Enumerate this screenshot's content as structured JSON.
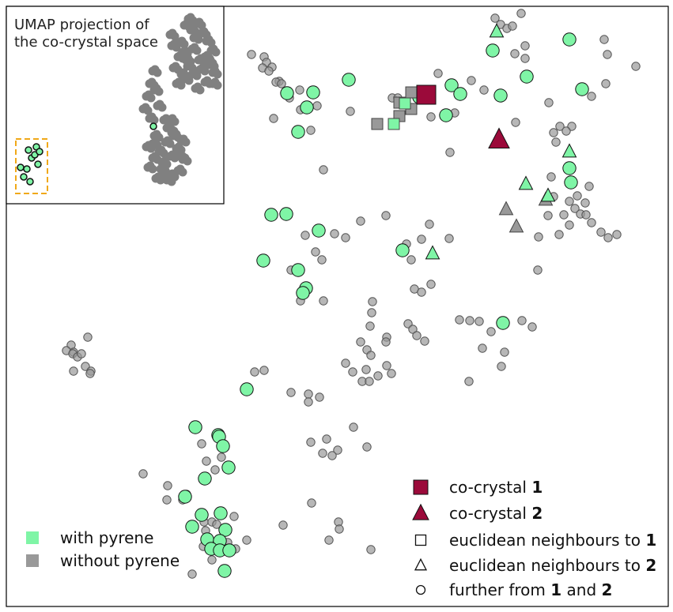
{
  "chart_data": {
    "type": "scatter",
    "title": "",
    "xlabel": "",
    "ylabel": "",
    "axes_visible": false,
    "grid": false,
    "legend_position": "bottom-right",
    "colors": {
      "with_pyrene": "#7ff5a6",
      "without_pyrene": "#999999",
      "cocrystal": "#9b0a3a",
      "edge": "#111111",
      "inset_box": "#f0a818",
      "inset_points": "#808080"
    },
    "markers": {
      "cocrystal_1": "square",
      "cocrystal_2": "triangle",
      "neighbours_1": "square",
      "neighbours_2": "triangle",
      "further": "circle"
    },
    "main": {
      "cocrystal_1": [
        [
          539,
          120
        ]
      ],
      "cocrystal_2": [
        [
          631,
          177
        ]
      ],
      "neighbours_1_with": [
        [
          512,
          131
        ],
        [
          498,
          157
        ]
      ],
      "neighbours_1_without": [
        [
          520,
          117
        ],
        [
          505,
          130
        ],
        [
          520,
          138
        ],
        [
          505,
          147
        ],
        [
          477,
          157
        ]
      ],
      "neighbours_2_with": [
        [
          628,
          40
        ],
        [
          720,
          192
        ],
        [
          665,
          233
        ],
        [
          693,
          248
        ],
        [
          547,
          321
        ]
      ],
      "neighbours_2_without": [
        [
          640,
          265
        ],
        [
          653,
          287
        ],
        [
          690,
          253
        ]
      ],
      "further_with": [
        [
          441,
          101
        ],
        [
          363,
          118
        ],
        [
          396,
          117
        ],
        [
          388,
          136
        ],
        [
          377,
          167
        ],
        [
          571,
          108
        ],
        [
          582,
          119
        ],
        [
          530,
          123
        ],
        [
          564,
          146
        ],
        [
          623,
          64
        ],
        [
          720,
          50
        ],
        [
          666,
          97
        ],
        [
          633,
          121
        ],
        [
          736,
          113
        ],
        [
          720,
          213
        ],
        [
          722,
          231
        ],
        [
          343,
          272
        ],
        [
          362,
          271
        ],
        [
          403,
          292
        ],
        [
          333,
          330
        ],
        [
          377,
          342
        ],
        [
          509,
          317
        ],
        [
          387,
          365
        ],
        [
          383,
          371
        ],
        [
          636,
          409
        ],
        [
          312,
          493
        ],
        [
          247,
          541
        ],
        [
          276,
          551
        ],
        [
          277,
          553
        ],
        [
          282,
          565
        ],
        [
          289,
          592
        ],
        [
          259,
          606
        ],
        [
          234,
          629
        ],
        [
          255,
          652
        ],
        [
          279,
          650
        ],
        [
          243,
          667
        ],
        [
          285,
          671
        ],
        [
          262,
          683
        ],
        [
          278,
          685
        ],
        [
          267,
          695
        ],
        [
          278,
          697
        ],
        [
          290,
          697
        ],
        [
          284,
          723
        ]
      ],
      "further_without": [
        [
          318,
          69
        ],
        [
          334,
          72
        ],
        [
          337,
          79
        ],
        [
          332,
          86
        ],
        [
          344,
          85
        ],
        [
          340,
          90
        ],
        [
          353,
          103
        ],
        [
          349,
          104
        ],
        [
          356,
          106
        ],
        [
          379,
          114
        ],
        [
          401,
          134
        ],
        [
          366,
          124
        ],
        [
          380,
          139
        ],
        [
          393,
          165
        ],
        [
          346,
          150
        ],
        [
          443,
          141
        ],
        [
          496,
          124
        ],
        [
          503,
          124
        ],
        [
          531,
          114
        ],
        [
          545,
          148
        ],
        [
          554,
          93
        ],
        [
          575,
          143
        ],
        [
          596,
          102
        ],
        [
          569,
          193
        ],
        [
          612,
          114
        ],
        [
          659,
          17
        ],
        [
          626,
          23
        ],
        [
          633,
          31
        ],
        [
          641,
          36
        ],
        [
          648,
          33
        ],
        [
          651,
          68
        ],
        [
          664,
          58
        ],
        [
          664,
          74
        ],
        [
          652,
          155
        ],
        [
          694,
          130
        ],
        [
          708,
          160
        ],
        [
          723,
          160
        ],
        [
          700,
          168
        ],
        [
          703,
          180
        ],
        [
          716,
          166
        ],
        [
          764,
          50
        ],
        [
          768,
          69
        ],
        [
          804,
          84
        ],
        [
          766,
          106
        ],
        [
          748,
          122
        ],
        [
          409,
          215
        ],
        [
          697,
          224
        ],
        [
          745,
          236
        ],
        [
          700,
          249
        ],
        [
          730,
          248
        ],
        [
          720,
          255
        ],
        [
          740,
          257
        ],
        [
          727,
          264
        ],
        [
          713,
          272
        ],
        [
          734,
          271
        ],
        [
          741,
          272
        ],
        [
          693,
          273
        ],
        [
          748,
          282
        ],
        [
          720,
          285
        ],
        [
          707,
          297
        ],
        [
          681,
          300
        ],
        [
          760,
          294
        ],
        [
          769,
          301
        ],
        [
          780,
          297
        ],
        [
          456,
          280
        ],
        [
          488,
          273
        ],
        [
          543,
          284
        ],
        [
          533,
          303
        ],
        [
          568,
          302
        ],
        [
          514,
          309
        ],
        [
          520,
          329
        ],
        [
          386,
          298
        ],
        [
          399,
          319
        ],
        [
          423,
          296
        ],
        [
          437,
          301
        ],
        [
          407,
          329
        ],
        [
          368,
          342
        ],
        [
          380,
          381
        ],
        [
          409,
          381
        ],
        [
          471,
          382
        ],
        [
          545,
          360
        ],
        [
          524,
          366
        ],
        [
          533,
          370
        ],
        [
          470,
          396
        ],
        [
          468,
          413
        ],
        [
          516,
          410
        ],
        [
          522,
          417
        ],
        [
          527,
          425
        ],
        [
          537,
          432
        ],
        [
          489,
          427
        ],
        [
          488,
          433
        ],
        [
          456,
          433
        ],
        [
          464,
          443
        ],
        [
          469,
          450
        ],
        [
          581,
          405
        ],
        [
          594,
          406
        ],
        [
          606,
          407
        ],
        [
          621,
          420
        ],
        [
          660,
          406
        ],
        [
          673,
          414
        ],
        [
          610,
          441
        ],
        [
          638,
          446
        ],
        [
          634,
          464
        ],
        [
          680,
          342
        ],
        [
          437,
          460
        ],
        [
          446,
          471
        ],
        [
          463,
          468
        ],
        [
          458,
          483
        ],
        [
          467,
          483
        ],
        [
          478,
          476
        ],
        [
          489,
          463
        ],
        [
          495,
          473
        ],
        [
          111,
          427
        ],
        [
          90,
          437
        ],
        [
          84,
          444
        ],
        [
          93,
          446
        ],
        [
          92,
          448
        ],
        [
          98,
          452
        ],
        [
          103,
          448
        ],
        [
          108,
          464
        ],
        [
          115,
          470
        ],
        [
          114,
          473
        ],
        [
          93,
          470
        ],
        [
          322,
          471
        ],
        [
          334,
          469
        ],
        [
          368,
          497
        ],
        [
          390,
          499
        ],
        [
          404,
          503
        ],
        [
          390,
          509
        ],
        [
          593,
          483
        ],
        [
          447,
          541
        ],
        [
          393,
          560
        ],
        [
          413,
          556
        ],
        [
          464,
          566
        ],
        [
          427,
          570
        ],
        [
          408,
          574
        ],
        [
          420,
          577
        ],
        [
          255,
          562
        ],
        [
          280,
          579
        ],
        [
          261,
          584
        ],
        [
          272,
          595
        ],
        [
          181,
          600
        ],
        [
          212,
          615
        ],
        [
          211,
          633
        ],
        [
          231,
          633
        ],
        [
          236,
          626
        ],
        [
          258,
          661
        ],
        [
          268,
          661
        ],
        [
          296,
          654
        ],
        [
          260,
          672
        ],
        [
          274,
          664
        ],
        [
          257,
          692
        ],
        [
          288,
          687
        ],
        [
          312,
          684
        ],
        [
          298,
          695
        ],
        [
          268,
          709
        ],
        [
          243,
          727
        ],
        [
          394,
          637
        ],
        [
          358,
          665
        ],
        [
          428,
          661
        ],
        [
          429,
          670
        ],
        [
          416,
          684
        ],
        [
          469,
          696
        ]
      ]
    },
    "inset": {
      "title": "UMAP projection of\nthe co-crystal space",
      "highlight_box": "dashed orange rectangle around the co-crystal cluster",
      "cluster_gray": [
        [
          241,
          22
        ],
        [
          236,
          30
        ],
        [
          244,
          36
        ],
        [
          252,
          28
        ],
        [
          258,
          40
        ],
        [
          264,
          50
        ],
        [
          270,
          62
        ],
        [
          266,
          76
        ],
        [
          272,
          90
        ],
        [
          262,
          102
        ],
        [
          250,
          110
        ],
        [
          236,
          98
        ],
        [
          222,
          84
        ],
        [
          228,
          70
        ],
        [
          220,
          56
        ],
        [
          218,
          42
        ],
        [
          230,
          52
        ],
        [
          246,
          60
        ],
        [
          254,
          74
        ],
        [
          240,
          82
        ],
        [
          232,
          92
        ],
        [
          226,
          104
        ],
        [
          246,
          92
        ],
        [
          256,
          86
        ],
        [
          262,
          70
        ],
        [
          248,
          46
        ],
        [
          234,
          64
        ],
        [
          238,
          74
        ],
        [
          268,
          80
        ],
        [
          272,
          104
        ],
        [
          196,
          88
        ],
        [
          192,
          104
        ],
        [
          188,
          120
        ],
        [
          184,
          136
        ],
        [
          192,
          148
        ],
        [
          202,
          132
        ],
        [
          198,
          112
        ],
        [
          210,
          150
        ],
        [
          218,
          150
        ],
        [
          214,
          160
        ],
        [
          220,
          166
        ],
        [
          198,
          170
        ],
        [
          188,
          184
        ],
        [
          196,
          198
        ],
        [
          206,
          212
        ],
        [
          218,
          220
        ],
        [
          228,
          214
        ],
        [
          234,
          200
        ],
        [
          226,
          186
        ],
        [
          212,
          178
        ],
        [
          204,
          190
        ],
        [
          190,
          210
        ],
        [
          200,
          224
        ],
        [
          214,
          226
        ],
        [
          228,
          194
        ],
        [
          232,
          176
        ],
        [
          222,
          170
        ],
        [
          208,
          204
        ],
        [
          196,
          180
        ],
        [
          218,
          196
        ],
        [
          210,
          218
        ]
      ],
      "cluster_cocrystal": [
        [
          36,
          190
        ],
        [
          46,
          186
        ],
        [
          40,
          200
        ],
        [
          48,
          208
        ],
        [
          34,
          214
        ],
        [
          30,
          224
        ],
        [
          44,
          196
        ],
        [
          38,
          230
        ],
        [
          26,
          212
        ],
        [
          50,
          192
        ]
      ]
    },
    "legend": {
      "pyrene": [
        {
          "label": "with pyrene",
          "color_key": "with_pyrene"
        },
        {
          "label": "without pyrene",
          "color_key": "without_pyrene"
        }
      ],
      "markers": [
        {
          "marker": "filled-square",
          "text": "co-crystal ",
          "num": "1"
        },
        {
          "marker": "filled-triangle",
          "text": "co-crystal ",
          "num": "2"
        },
        {
          "marker": "hollow-square",
          "text": "euclidean neighbours to ",
          "num": "1"
        },
        {
          "marker": "hollow-triangle",
          "text": "euclidean neighbours to ",
          "num": "2"
        },
        {
          "marker": "hollow-circle",
          "text": "further from ",
          "num": "1",
          "mid": " and ",
          "num2": "2"
        }
      ]
    }
  }
}
